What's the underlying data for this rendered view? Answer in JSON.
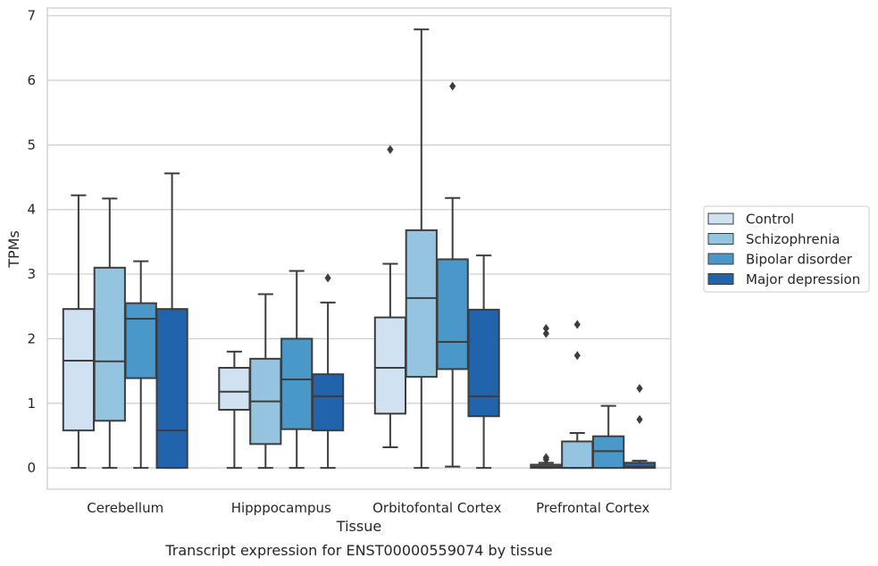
{
  "chart_data": {
    "type": "box",
    "title": "Transcript expression for ENST00000559074 by tissue",
    "xlabel": "Tissue",
    "ylabel": "TPMs",
    "ylim": [
      -0.33,
      7.12
    ],
    "yticks": [
      "0",
      "1",
      "2",
      "3",
      "4",
      "5",
      "6",
      "7"
    ],
    "grid": "horizontal",
    "legend_position": "right",
    "categories": [
      "Cerebellum",
      "Hipppocampus",
      "Orbitofontal Cortex",
      "Prefrontal Cortex"
    ],
    "series": [
      {
        "name": "Control",
        "color": "#d0e1f2",
        "boxes": [
          {
            "whislo": 0.0,
            "q1": 0.58,
            "med": 1.66,
            "q3": 2.46,
            "whishi": 4.22,
            "fliers": []
          },
          {
            "whislo": 0.0,
            "q1": 0.9,
            "med": 1.18,
            "q3": 1.55,
            "whishi": 1.8,
            "fliers": []
          },
          {
            "whislo": 0.32,
            "q1": 0.84,
            "med": 1.55,
            "q3": 2.33,
            "whishi": 3.16,
            "fliers": [
              4.93
            ]
          },
          {
            "whislo": 0.0,
            "q1": 0.0,
            "med": 0.02,
            "q3": 0.05,
            "whishi": 0.08,
            "fliers": [
              2.16,
              2.08,
              0.16,
              0.13
            ]
          }
        ]
      },
      {
        "name": "Schizophrenia",
        "color": "#94c4df",
        "boxes": [
          {
            "whislo": 0.0,
            "q1": 0.73,
            "med": 1.65,
            "q3": 3.1,
            "whishi": 4.17,
            "fliers": []
          },
          {
            "whislo": 0.0,
            "q1": 0.37,
            "med": 1.03,
            "q3": 1.69,
            "whishi": 2.69,
            "fliers": []
          },
          {
            "whislo": 0.0,
            "q1": 1.41,
            "med": 2.63,
            "q3": 3.68,
            "whishi": 6.79,
            "fliers": []
          },
          {
            "whislo": 0.0,
            "q1": 0.0,
            "med": 0.0,
            "q3": 0.41,
            "whishi": 0.54,
            "fliers": [
              2.22,
              1.74
            ]
          }
        ]
      },
      {
        "name": "Bipolar disorder",
        "color": "#4a98c9",
        "boxes": [
          {
            "whislo": 0.0,
            "q1": 1.39,
            "med": 2.31,
            "q3": 2.55,
            "whishi": 3.2,
            "fliers": []
          },
          {
            "whislo": 0.0,
            "q1": 0.6,
            "med": 1.37,
            "q3": 2.0,
            "whishi": 3.05,
            "fliers": []
          },
          {
            "whislo": 0.02,
            "q1": 1.53,
            "med": 1.95,
            "q3": 3.23,
            "whishi": 4.18,
            "fliers": [
              5.91
            ]
          },
          {
            "whislo": 0.0,
            "q1": 0.0,
            "med": 0.26,
            "q3": 0.49,
            "whishi": 0.96,
            "fliers": []
          }
        ]
      },
      {
        "name": "Major depression",
        "color": "#2164ab",
        "boxes": [
          {
            "whislo": 0.0,
            "q1": 0.0,
            "med": 0.58,
            "q3": 2.46,
            "whishi": 4.56,
            "fliers": []
          },
          {
            "whislo": 0.0,
            "q1": 0.58,
            "med": 1.11,
            "q3": 1.45,
            "whishi": 2.56,
            "fliers": [
              2.94
            ]
          },
          {
            "whislo": 0.0,
            "q1": 0.8,
            "med": 1.11,
            "q3": 2.45,
            "whishi": 3.29,
            "fliers": []
          },
          {
            "whislo": 0.0,
            "q1": 0.0,
            "med": 0.02,
            "q3": 0.08,
            "whishi": 0.11,
            "fliers": [
              1.23,
              0.75
            ]
          }
        ]
      }
    ]
  }
}
